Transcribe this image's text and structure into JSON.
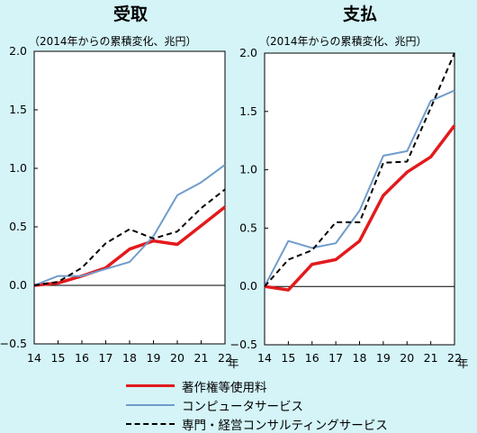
{
  "chart_data": [
    {
      "type": "line",
      "title": "受取",
      "subtitle": "（2014年からの累積変化、兆円）",
      "x": [
        "14",
        "15",
        "16",
        "17",
        "18",
        "19",
        "20",
        "21",
        "22"
      ],
      "x_unit": "年",
      "ylim": [
        -0.5,
        2.0
      ],
      "yticks": [
        "2.0",
        "1.5",
        "1.0",
        "0.5",
        "0.0",
        "−0.5"
      ],
      "series": [
        {
          "name": "著作権等使用料",
          "values": [
            0.0,
            0.02,
            0.08,
            0.15,
            0.31,
            0.38,
            0.35,
            0.51,
            0.67
          ]
        },
        {
          "name": "コンピュータサービス",
          "values": [
            0.0,
            0.08,
            0.08,
            0.14,
            0.2,
            0.42,
            0.77,
            0.88,
            1.03
          ]
        },
        {
          "name": "専門・経営コンサルティングサービス",
          "values": [
            0.0,
            0.03,
            0.15,
            0.36,
            0.48,
            0.4,
            0.46,
            0.66,
            0.82
          ]
        }
      ]
    },
    {
      "type": "line",
      "title": "支払",
      "subtitle": "（2014年からの累積変化、兆円）",
      "x": [
        "14",
        "15",
        "16",
        "17",
        "18",
        "19",
        "20",
        "21",
        "22"
      ],
      "x_unit": "年",
      "ylim": [
        -0.5,
        2.0
      ],
      "yticks": [
        "2.0",
        "1.5",
        "1.0",
        "0.5",
        "0.0",
        "−0.5"
      ],
      "series": [
        {
          "name": "著作権等使用料",
          "values": [
            0.0,
            -0.03,
            0.19,
            0.23,
            0.39,
            0.78,
            0.98,
            1.11,
            1.38
          ]
        },
        {
          "name": "コンピュータサービス",
          "values": [
            0.0,
            0.39,
            0.33,
            0.37,
            0.65,
            1.12,
            1.16,
            1.59,
            1.68
          ]
        },
        {
          "name": "専門・経営コンサルティングサービス",
          "values": [
            0.0,
            0.23,
            0.31,
            0.55,
            0.55,
            1.06,
            1.07,
            1.53,
            2.0
          ]
        }
      ]
    }
  ],
  "legend": [
    {
      "label": "著作権等使用料",
      "color": "#e31a1c",
      "style": "solid-thick"
    },
    {
      "label": "コンピュータサービス",
      "color": "#6f9ccb",
      "style": "solid"
    },
    {
      "label": "専門・経営コンサルティングサービス",
      "color": "#000000",
      "style": "dashed"
    }
  ]
}
